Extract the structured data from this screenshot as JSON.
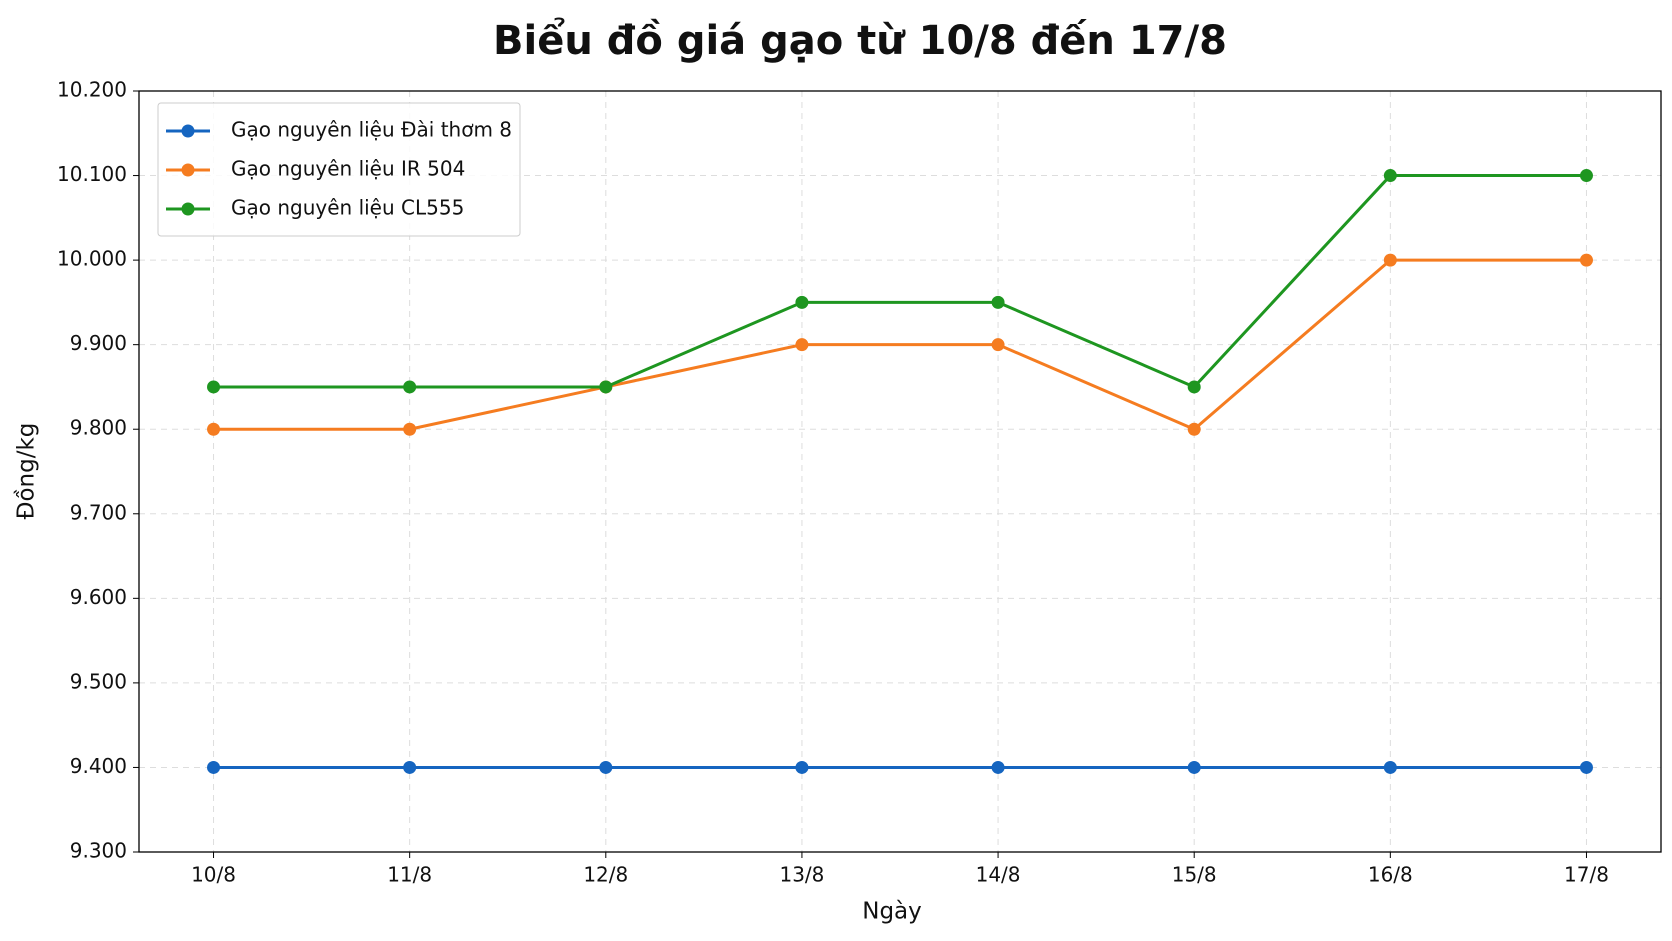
{
  "chart_data": {
    "type": "line",
    "title": "Biểu đồ giá gạo từ 10/8 đến 17/8",
    "x_label": "Ngày",
    "y_label": "Đồng/kg",
    "categories": [
      "10/8",
      "11/8",
      "12/8",
      "13/8",
      "14/8",
      "15/8",
      "16/8",
      "17/8"
    ],
    "series": [
      {
        "name": "Gạo nguyên liệu Đài thơm 8",
        "color": "#1565c0",
        "values": [
          9400,
          9400,
          9400,
          9400,
          9400,
          9400,
          9400,
          9400
        ]
      },
      {
        "name": "Gạo nguyên liệu IR 504",
        "color": "#f57c20",
        "values": [
          9800,
          9800,
          9850,
          9900,
          9900,
          9800,
          10000,
          10000
        ]
      },
      {
        "name": "Gạo nguyên liệu CL555",
        "color": "#1e9620",
        "values": [
          9850,
          9850,
          9850,
          9950,
          9950,
          9850,
          10100,
          10100
        ]
      }
    ],
    "ylim": [
      9300,
      10200
    ],
    "yticks": [
      {
        "value": 9300,
        "label": "9.300"
      },
      {
        "value": 9400,
        "label": "9.400"
      },
      {
        "value": 9500,
        "label": "9.500"
      },
      {
        "value": 9600,
        "label": "9.600"
      },
      {
        "value": 9700,
        "label": "9.700"
      },
      {
        "value": 9800,
        "label": "9.800"
      },
      {
        "value": 9900,
        "label": "9.900"
      },
      {
        "value": 10000,
        "label": "10.000"
      },
      {
        "value": 10100,
        "label": "10.100"
      },
      {
        "value": 10200,
        "label": "10.200"
      }
    ],
    "grid": true,
    "legend": "upper-left"
  }
}
